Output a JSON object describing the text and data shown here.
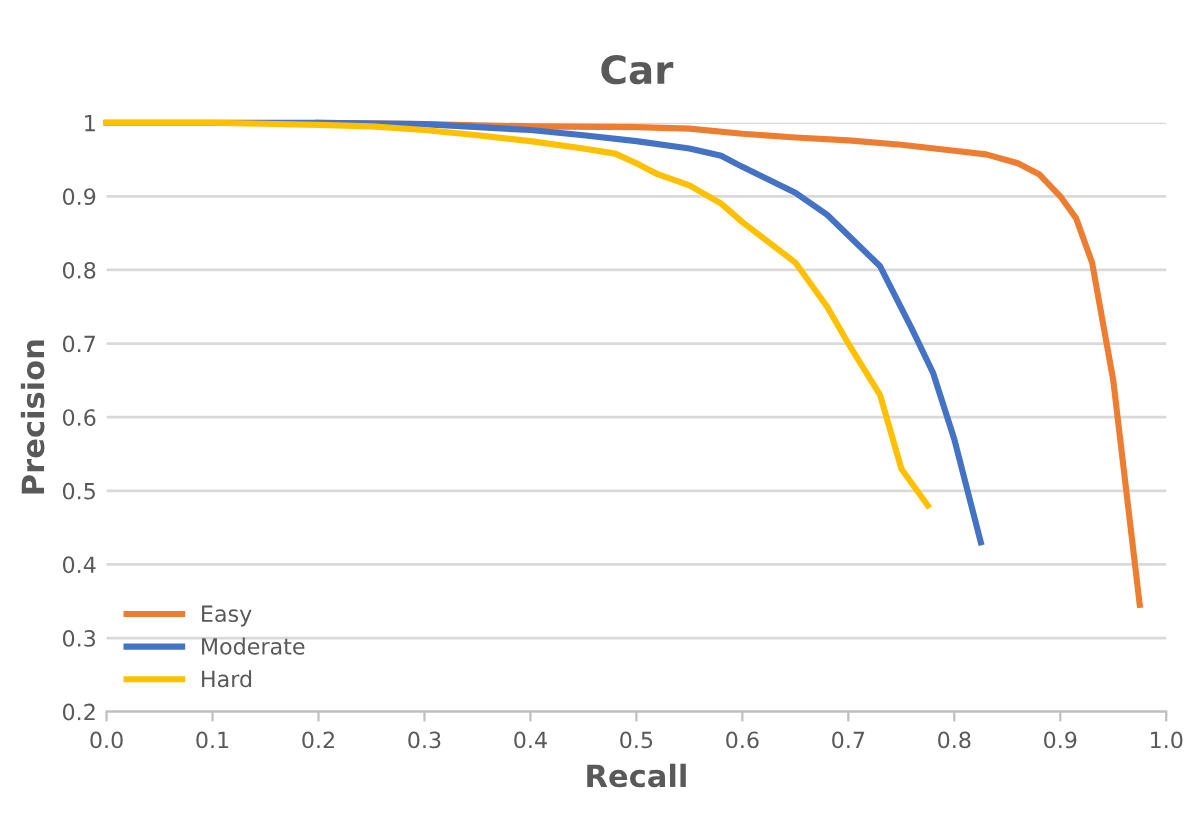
{
  "chart_data": {
    "type": "line",
    "title": "Car",
    "xlabel": "Recall",
    "ylabel": "Precision",
    "xlim": [
      0,
      1
    ],
    "ylim": [
      0.2,
      1
    ],
    "xticks": [
      {
        "value": 0,
        "label": "0.0"
      },
      0.1,
      0.2,
      0.3,
      0.4,
      0.5,
      0.6,
      0.7,
      0.8,
      0.9,
      {
        "value": 1,
        "label": "1.0"
      }
    ],
    "yticks": [
      0.2,
      0.3,
      0.4,
      0.5,
      0.6,
      0.7,
      0.8,
      0.9,
      1
    ],
    "grid": "y",
    "legend": "bottom left",
    "marker": "none",
    "line_style": "solid",
    "series": [
      {
        "name": "Easy",
        "color": "#ed7d31",
        "x": [
          0.2,
          0.3,
          0.4,
          0.5,
          0.55,
          0.6,
          0.65,
          0.7,
          0.75,
          0.8,
          0.83,
          0.86,
          0.88,
          0.9,
          0.915,
          0.93,
          0.95,
          0.975
        ],
        "values": [
          1,
          0.998,
          0.995,
          0.994,
          0.992,
          0.985,
          0.98,
          0.976,
          0.97,
          0.962,
          0.957,
          0.945,
          0.93,
          0.9,
          0.87,
          0.81,
          0.65,
          0.345
        ]
      },
      {
        "name": "Moderate",
        "color": "#4472c4",
        "x": [
          0,
          0.2,
          0.3,
          0.4,
          0.45,
          0.5,
          0.55,
          0.58,
          0.6,
          0.65,
          0.68,
          0.73,
          0.76,
          0.78,
          0.8,
          0.825
        ],
        "values": [
          1,
          1,
          0.998,
          0.99,
          0.983,
          0.975,
          0.965,
          0.955,
          0.94,
          0.905,
          0.875,
          0.805,
          0.72,
          0.66,
          0.57,
          0.43
        ]
      },
      {
        "name": "Hard",
        "color": "#ffc000",
        "x": [
          0,
          0.1,
          0.2,
          0.25,
          0.3,
          0.35,
          0.4,
          0.45,
          0.48,
          0.5,
          0.52,
          0.55,
          0.58,
          0.6,
          0.65,
          0.68,
          0.7,
          0.73,
          0.75,
          0.775
        ],
        "values": [
          1,
          1,
          0.997,
          0.995,
          0.99,
          0.983,
          0.975,
          0.965,
          0.958,
          0.945,
          0.93,
          0.915,
          0.89,
          0.865,
          0.81,
          0.75,
          0.7,
          0.63,
          0.53,
          0.48
        ]
      }
    ]
  }
}
